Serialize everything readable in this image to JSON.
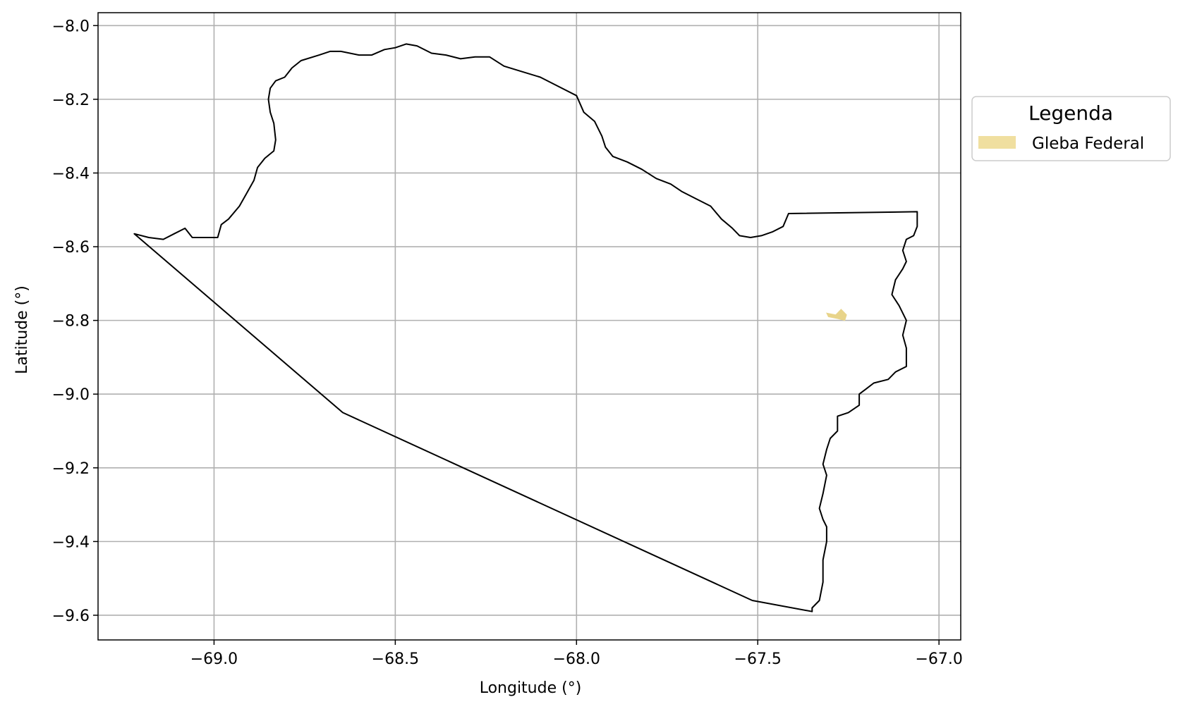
{
  "chart_data": {
    "type": "map",
    "xlabel": "Longitude (°)",
    "ylabel": "Latitude (°)",
    "xlim": [
      -69.32,
      -66.94
    ],
    "ylim": [
      -9.667,
      -7.965
    ],
    "xticks": [
      -69.0,
      -68.5,
      -68.0,
      -67.5,
      -67.0
    ],
    "xtick_labels": [
      "−69.0",
      "−68.5",
      "−68.0",
      "−67.5",
      "−67.0"
    ],
    "yticks": [
      -8.0,
      -8.2,
      -8.4,
      -8.6,
      -8.8,
      -9.0,
      -9.2,
      -9.4,
      -9.6
    ],
    "ytick_labels": [
      "−8.0",
      "−8.2",
      "−8.4",
      "−8.6",
      "−8.8",
      "−9.0",
      "−9.2",
      "−9.4",
      "−9.6"
    ],
    "grid": true,
    "legend": {
      "title": "Legenda",
      "placement": "outside-right",
      "entries": [
        {
          "label": "Gleba Federal",
          "color": "#f0dfa0"
        }
      ]
    },
    "layers": [
      {
        "name": "boundary",
        "kind": "polygon-outline",
        "stroke": "#000000",
        "coordinates": [
          [
            -69.22,
            -8.565
          ],
          [
            -69.18,
            -8.575
          ],
          [
            -69.14,
            -8.58
          ],
          [
            -69.11,
            -8.565
          ],
          [
            -69.08,
            -8.55
          ],
          [
            -69.06,
            -8.575
          ],
          [
            -69.03,
            -8.575
          ],
          [
            -68.99,
            -8.575
          ],
          [
            -68.98,
            -8.54
          ],
          [
            -68.96,
            -8.525
          ],
          [
            -68.93,
            -8.49
          ],
          [
            -68.91,
            -8.455
          ],
          [
            -68.89,
            -8.42
          ],
          [
            -68.88,
            -8.385
          ],
          [
            -68.86,
            -8.36
          ],
          [
            -68.835,
            -8.34
          ],
          [
            -68.83,
            -8.31
          ],
          [
            -68.835,
            -8.265
          ],
          [
            -68.845,
            -8.235
          ],
          [
            -68.85,
            -8.2
          ],
          [
            -68.845,
            -8.17
          ],
          [
            -68.83,
            -8.15
          ],
          [
            -68.805,
            -8.14
          ],
          [
            -68.785,
            -8.115
          ],
          [
            -68.76,
            -8.095
          ],
          [
            -68.71,
            -8.08
          ],
          [
            -68.68,
            -8.07
          ],
          [
            -68.65,
            -8.07
          ],
          [
            -68.6,
            -8.08
          ],
          [
            -68.565,
            -8.08
          ],
          [
            -68.53,
            -8.065
          ],
          [
            -68.5,
            -8.06
          ],
          [
            -68.47,
            -8.05
          ],
          [
            -68.44,
            -8.055
          ],
          [
            -68.4,
            -8.075
          ],
          [
            -68.36,
            -8.08
          ],
          [
            -68.32,
            -8.09
          ],
          [
            -68.28,
            -8.085
          ],
          [
            -68.24,
            -8.085
          ],
          [
            -68.2,
            -8.11
          ],
          [
            -68.15,
            -8.125
          ],
          [
            -68.1,
            -8.14
          ],
          [
            -68.06,
            -8.16
          ],
          [
            -68.0,
            -8.19
          ],
          [
            -67.98,
            -8.235
          ],
          [
            -67.95,
            -8.26
          ],
          [
            -67.93,
            -8.3
          ],
          [
            -67.92,
            -8.33
          ],
          [
            -67.9,
            -8.355
          ],
          [
            -67.86,
            -8.37
          ],
          [
            -67.82,
            -8.39
          ],
          [
            -67.78,
            -8.415
          ],
          [
            -67.74,
            -8.43
          ],
          [
            -67.71,
            -8.45
          ],
          [
            -67.67,
            -8.47
          ],
          [
            -67.63,
            -8.49
          ],
          [
            -67.6,
            -8.525
          ],
          [
            -67.57,
            -8.55
          ],
          [
            -67.55,
            -8.57
          ],
          [
            -67.52,
            -8.575
          ],
          [
            -67.49,
            -8.57
          ],
          [
            -67.46,
            -8.56
          ],
          [
            -67.43,
            -8.545
          ],
          [
            -67.415,
            -8.51
          ],
          [
            -67.06,
            -8.505
          ],
          [
            -67.06,
            -8.545
          ],
          [
            -67.07,
            -8.57
          ],
          [
            -67.09,
            -8.58
          ],
          [
            -67.1,
            -8.61
          ],
          [
            -67.09,
            -8.64
          ],
          [
            -67.1,
            -8.66
          ],
          [
            -67.12,
            -8.69
          ],
          [
            -67.13,
            -8.73
          ],
          [
            -67.11,
            -8.76
          ],
          [
            -67.09,
            -8.8
          ],
          [
            -67.1,
            -8.84
          ],
          [
            -67.09,
            -8.875
          ],
          [
            -67.09,
            -8.925
          ],
          [
            -67.12,
            -8.94
          ],
          [
            -67.14,
            -8.96
          ],
          [
            -67.18,
            -8.97
          ],
          [
            -67.2,
            -8.985
          ],
          [
            -67.22,
            -9.0
          ],
          [
            -67.22,
            -9.03
          ],
          [
            -67.25,
            -9.05
          ],
          [
            -67.28,
            -9.06
          ],
          [
            -67.28,
            -9.1
          ],
          [
            -67.3,
            -9.12
          ],
          [
            -67.31,
            -9.15
          ],
          [
            -67.32,
            -9.19
          ],
          [
            -67.31,
            -9.22
          ],
          [
            -67.32,
            -9.27
          ],
          [
            -67.33,
            -9.31
          ],
          [
            -67.32,
            -9.34
          ],
          [
            -67.31,
            -9.36
          ],
          [
            -67.31,
            -9.4
          ],
          [
            -67.32,
            -9.45
          ],
          [
            -67.32,
            -9.51
          ],
          [
            -67.33,
            -9.56
          ],
          [
            -67.35,
            -9.58
          ],
          [
            -67.35,
            -9.59
          ],
          [
            -67.515,
            -9.56
          ],
          [
            -68.645,
            -9.05
          ],
          [
            -69.22,
            -8.565
          ]
        ]
      },
      {
        "name": "Gleba Federal",
        "kind": "polygon-fill",
        "fill": "#e8d48a",
        "coordinates": [
          [
            -67.31,
            -8.78
          ],
          [
            -67.285,
            -8.785
          ],
          [
            -67.27,
            -8.77
          ],
          [
            -67.255,
            -8.785
          ],
          [
            -67.26,
            -8.8
          ],
          [
            -67.28,
            -8.795
          ],
          [
            -67.305,
            -8.79
          ],
          [
            -67.31,
            -8.78
          ]
        ]
      }
    ]
  }
}
